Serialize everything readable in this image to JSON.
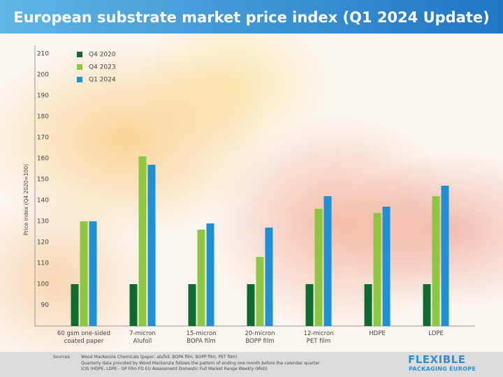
{
  "chart_data": {
    "type": "bar",
    "title": "European substrate market price index (Q1 2024 Update)",
    "y_label": "Price index (Q4 2020=100)",
    "categories": [
      "60 gsm one-sided\ncoated paper",
      "7-micron\nAlufoil",
      "15-micron\nBOPA film",
      "20-micron\nBOPP film",
      "12-micron\nPET film",
      "HDPE",
      "LDPE"
    ],
    "series": [
      {
        "name": "Q4 2020",
        "color": "#0e6b2e",
        "values": [
          100,
          100,
          100,
          100,
          100,
          100,
          100
        ]
      },
      {
        "name": "Q4 2023",
        "color": "#8dc63f",
        "values": [
          130,
          161,
          126,
          113,
          136,
          134,
          142
        ]
      },
      {
        "name": "Q1 2024",
        "color": "#1e90d6",
        "values": [
          130,
          157,
          129,
          127,
          142,
          137,
          147
        ]
      }
    ],
    "ylim": [
      80,
      214
    ],
    "yticks": [
      90,
      100,
      110,
      120,
      130,
      140,
      150,
      160,
      170,
      180,
      190,
      200,
      210
    ],
    "grid": false,
    "legend": "top-left"
  },
  "footer": {
    "label": "Sources:",
    "lines": [
      "Wood Mackenzie Chemicals (paper, alufoil, BOPA film, BOPP film, PET film)",
      "Quarterly data provided by Wood Mackenzie follows the pattern of ending one month before the calendar quarter.",
      "ICIS (HDPE, LDPE - GP Film FD EU Assessment Domestic Full Market Range Weekly (Mid))"
    ],
    "logo": [
      "FLEXIBLE",
      "PACKAGING EUROPE"
    ]
  }
}
